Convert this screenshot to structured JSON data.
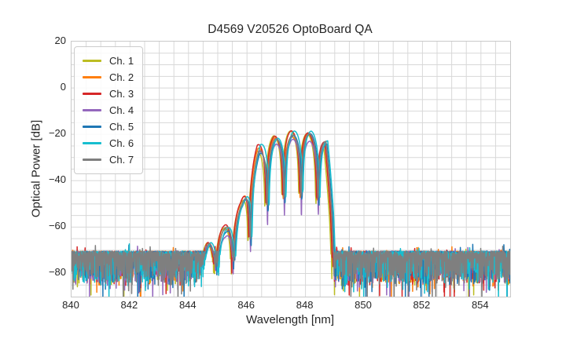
{
  "title": "D4569 V20526 OptoBoard QA",
  "axes": {
    "xlabel": "Wavelength [nm]",
    "ylabel": "Optical Power [dB]",
    "xlim": [
      840,
      855
    ],
    "ylim": [
      -90,
      20
    ],
    "xticks": [
      {
        "value": 840,
        "label": "840"
      },
      {
        "value": 842,
        "label": "842"
      },
      {
        "value": 844,
        "label": "844"
      },
      {
        "value": 846,
        "label": "846"
      },
      {
        "value": 848,
        "label": "848"
      },
      {
        "value": 850,
        "label": "850"
      },
      {
        "value": 852,
        "label": "852"
      },
      {
        "value": 854,
        "label": "854"
      }
    ],
    "yticks": [
      {
        "value": 20,
        "label": "20"
      },
      {
        "value": 0,
        "label": "0"
      },
      {
        "value": -20,
        "label": "−20"
      },
      {
        "value": -40,
        "label": "−40"
      },
      {
        "value": -60,
        "label": "−60"
      },
      {
        "value": -80,
        "label": "−80"
      }
    ],
    "minor_grid_x_step_nm": 0.5,
    "minor_grid_y_step_db": 5,
    "grid_color": "#d8d8d8",
    "spine_color": "#c9c9c9",
    "text_color": "#262626"
  },
  "legend": {
    "position": "upper left",
    "items": [
      {
        "label": "Ch. 1",
        "color": "#bcbd22"
      },
      {
        "label": "Ch. 2",
        "color": "#ff7f0e"
      },
      {
        "label": "Ch. 3",
        "color": "#d62728"
      },
      {
        "label": "Ch. 4",
        "color": "#9467bd"
      },
      {
        "label": "Ch. 5",
        "color": "#1f77b4"
      },
      {
        "label": "Ch. 6",
        "color": "#17becf"
      },
      {
        "label": "Ch. 7",
        "color": "#7f7f7f"
      }
    ]
  },
  "chart_data": {
    "type": "line",
    "title": "D4569 V20526 OptoBoard QA",
    "xlabel": "Wavelength [nm]",
    "ylabel": "Optical Power [dB]",
    "xlim": [
      840,
      855
    ],
    "ylim": [
      -90,
      20
    ],
    "grid": "both major+minor, 0.5 nm x 5 dB, light gray on white",
    "legend_position": "upper left",
    "description": "Optical spectra of 7 VCSEL channels, all overlapping: flat noise floor ~-71 dB (spikes down to -90 dB) across 840-844.7 nm and 849-855 nm, with a lobed emission band between ~844.7 and ~848.9 nm peaking near -19.5 dB around 847.6 nm; deep nulls (~-45 dB) separate lobes spaced ~0.58 nm; sharp fall back to the noise floor at ~848.9 nm.",
    "spectrum_model": {
      "noise_floor_top_db": -70.5,
      "noise_floor_typical_db": -74,
      "noise_spikes_to_db": -90,
      "lobe_period_nm": 0.58,
      "lobe_reference_center_nm": 847.56,
      "envelope_points": [
        [
          844.3,
          -76
        ],
        [
          844.7,
          -67
        ],
        [
          845.25,
          -62
        ],
        [
          845.82,
          -50
        ],
        [
          846.4,
          -26.5
        ],
        [
          846.98,
          -21
        ],
        [
          847.56,
          -19.5
        ],
        [
          848.14,
          -20
        ],
        [
          848.7,
          -23.5
        ],
        [
          848.9,
          -50
        ],
        [
          849.02,
          -76
        ]
      ],
      "null_depth_db": 26,
      "signal_band_nm": [
        844.6,
        848.95
      ],
      "peak_power_db": -19.5
    },
    "series": [
      {
        "name": "Ch. 1",
        "color": "#bcbd22",
        "wavelength_offset_nm": -0.075,
        "peak_bias_db": -0.5,
        "extra_null_depth_db": 0
      },
      {
        "name": "Ch. 2",
        "color": "#ff7f0e",
        "wavelength_offset_nm": -0.03,
        "peak_bias_db": 0.0,
        "extra_null_depth_db": 0
      },
      {
        "name": "Ch. 3",
        "color": "#d62728",
        "wavelength_offset_nm": -0.045,
        "peak_bias_db": 0.8,
        "extra_null_depth_db": 0
      },
      {
        "name": "Ch. 4",
        "color": "#9467bd",
        "wavelength_offset_nm": 0.01,
        "peak_bias_db": -2.2,
        "extra_null_depth_db": 6
      },
      {
        "name": "Ch. 5",
        "color": "#1f77b4",
        "wavelength_offset_nm": 0.03,
        "peak_bias_db": -0.8,
        "extra_null_depth_db": 2
      },
      {
        "name": "Ch. 6",
        "color": "#17becf",
        "wavelength_offset_nm": 0.06,
        "peak_bias_db": 0.5,
        "extra_null_depth_db": 0
      },
      {
        "name": "Ch. 7",
        "color": "#7f7f7f",
        "wavelength_offset_nm": 0.0,
        "peak_bias_db": 0.3,
        "extra_null_depth_db": 0
      }
    ]
  }
}
